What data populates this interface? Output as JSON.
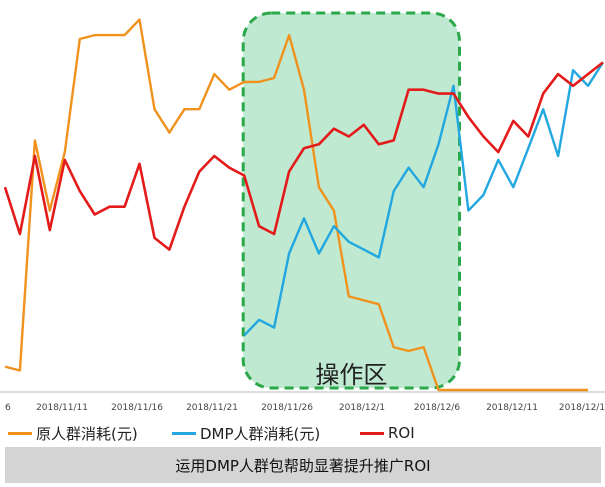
{
  "chart_data": {
    "type": "line",
    "title": "",
    "xlabel": "",
    "ylabel": "",
    "grid": false,
    "legend_position": "bottom",
    "x_ticks": [
      "6",
      "2018/11/11",
      "2018/11/16",
      "2018/11/21",
      "2018/11/26",
      "2018/12/1",
      "2018/12/6",
      "2018/12/11",
      "2018/12/1"
    ],
    "ylim": [
      0,
      100
    ],
    "colors": {
      "orig": "#f0921e",
      "dmp": "#22a7e0",
      "roi": "#e31b1b",
      "zone_fill": "#bfe9d0",
      "zone_border": "#2aa84a"
    },
    "series": [
      {
        "name": "原人群消耗(元)",
        "color": "#f0921e",
        "points": [
          [
            0,
            6
          ],
          [
            1,
            5
          ],
          [
            2,
            64
          ],
          [
            3,
            46
          ],
          [
            4,
            61
          ],
          [
            5,
            90
          ],
          [
            6,
            91
          ],
          [
            7,
            91
          ],
          [
            8,
            91
          ],
          [
            9,
            95
          ],
          [
            10,
            72
          ],
          [
            11,
            66
          ],
          [
            12,
            72
          ],
          [
            13,
            72
          ],
          [
            14,
            81
          ],
          [
            15,
            77
          ],
          [
            16,
            79
          ],
          [
            17,
            79
          ],
          [
            18,
            80
          ],
          [
            19,
            91
          ],
          [
            20,
            77
          ],
          [
            21,
            52
          ],
          [
            22,
            46
          ],
          [
            23,
            24
          ],
          [
            24,
            23
          ],
          [
            25,
            22
          ],
          [
            26,
            11
          ],
          [
            27,
            10
          ],
          [
            28,
            11
          ],
          [
            29,
            0
          ],
          [
            30,
            0
          ],
          [
            31,
            0
          ],
          [
            32,
            0
          ],
          [
            33,
            0
          ],
          [
            34,
            0
          ],
          [
            35,
            0
          ],
          [
            36,
            0
          ],
          [
            37,
            0
          ],
          [
            38,
            0
          ],
          [
            39,
            0
          ]
        ]
      },
      {
        "name": "DMP人群消耗(元)",
        "color": "#22a7e0",
        "points": [
          [
            16,
            14
          ],
          [
            17,
            18
          ],
          [
            18,
            16
          ],
          [
            19,
            35
          ],
          [
            20,
            44
          ],
          [
            21,
            35
          ],
          [
            22,
            42
          ],
          [
            23,
            38
          ],
          [
            24,
            36
          ],
          [
            25,
            34
          ],
          [
            26,
            51
          ],
          [
            27,
            57
          ],
          [
            28,
            52
          ],
          [
            29,
            63
          ],
          [
            30,
            78
          ],
          [
            31,
            46
          ],
          [
            32,
            50
          ],
          [
            33,
            59
          ],
          [
            34,
            52
          ],
          [
            35,
            62
          ],
          [
            36,
            72
          ],
          [
            37,
            60
          ],
          [
            38,
            82
          ],
          [
            39,
            78
          ],
          [
            40,
            84
          ]
        ]
      },
      {
        "name": "ROI",
        "color": "#e31b1b",
        "points": [
          [
            0,
            52
          ],
          [
            1,
            40
          ],
          [
            2,
            60
          ],
          [
            3,
            41
          ],
          [
            4,
            59
          ],
          [
            5,
            51
          ],
          [
            6,
            45
          ],
          [
            7,
            47
          ],
          [
            8,
            47
          ],
          [
            9,
            58
          ],
          [
            10,
            39
          ],
          [
            11,
            36
          ],
          [
            12,
            47
          ],
          [
            13,
            56
          ],
          [
            14,
            60
          ],
          [
            15,
            57
          ],
          [
            16,
            55
          ],
          [
            17,
            42
          ],
          [
            18,
            40
          ],
          [
            19,
            56
          ],
          [
            20,
            62
          ],
          [
            21,
            63
          ],
          [
            22,
            67
          ],
          [
            23,
            65
          ],
          [
            24,
            68
          ],
          [
            25,
            63
          ],
          [
            26,
            64
          ],
          [
            27,
            77
          ],
          [
            28,
            77
          ],
          [
            29,
            76
          ],
          [
            30,
            76
          ],
          [
            31,
            70
          ],
          [
            32,
            65
          ],
          [
            33,
            61
          ],
          [
            34,
            69
          ],
          [
            35,
            65
          ],
          [
            36,
            76
          ],
          [
            37,
            81
          ],
          [
            38,
            78
          ],
          [
            39,
            81
          ],
          [
            40,
            84
          ]
        ]
      }
    ],
    "zone": {
      "label": "操作区",
      "x_range": [
        16,
        30
      ]
    }
  },
  "caption": "运用DMP人群包帮助显著提升推广ROI"
}
